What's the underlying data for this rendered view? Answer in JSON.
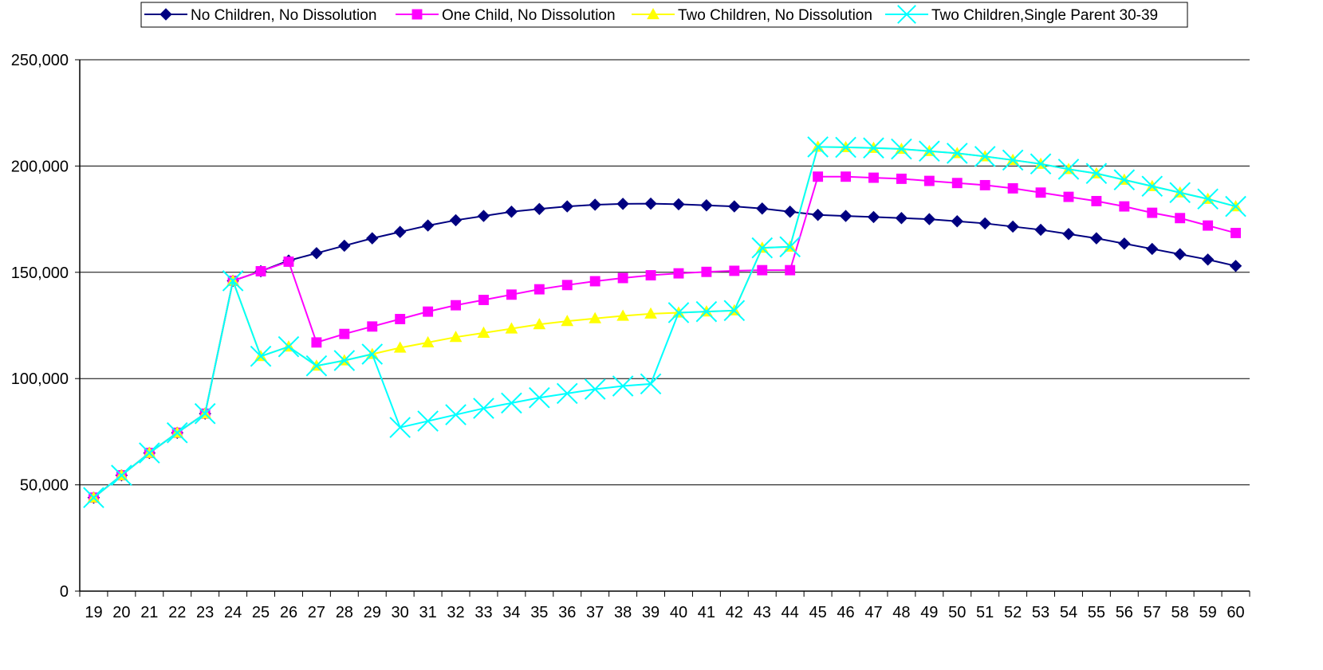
{
  "chart_data": {
    "type": "line",
    "title": "",
    "xlabel": "",
    "ylabel": "",
    "x": [
      19,
      20,
      21,
      22,
      23,
      24,
      25,
      26,
      27,
      28,
      29,
      30,
      31,
      32,
      33,
      34,
      35,
      36,
      37,
      38,
      39,
      40,
      41,
      42,
      43,
      44,
      45,
      46,
      47,
      48,
      49,
      50,
      51,
      52,
      53,
      54,
      55,
      56,
      57,
      58,
      59,
      60
    ],
    "ylim": [
      0,
      250000
    ],
    "yticks": [
      0,
      50000,
      100000,
      150000,
      200000,
      250000
    ],
    "ytick_labels": [
      "0",
      "50,000",
      "100,000",
      "150,000",
      "200,000",
      "250,000"
    ],
    "grid": "horizontal",
    "legend_position": "top",
    "series": [
      {
        "name": "No Children, No Dissolution",
        "color": "#000080",
        "marker": "diamond",
        "values": [
          44000,
          54500,
          65000,
          74500,
          83500,
          146000,
          150500,
          155500,
          159000,
          162500,
          166000,
          169000,
          172000,
          174500,
          176500,
          178500,
          179800,
          181000,
          181800,
          182200,
          182300,
          182000,
          181500,
          181000,
          180000,
          178500,
          177000,
          176500,
          176000,
          175500,
          175000,
          174000,
          173000,
          171500,
          170000,
          168000,
          166000,
          163500,
          161000,
          158500,
          156000,
          153000
        ]
      },
      {
        "name": "One Child, No Dissolution",
        "color": "#FF00FF",
        "marker": "square",
        "values": [
          44000,
          54500,
          65000,
          74500,
          83500,
          146000,
          150500,
          155000,
          117000,
          121000,
          124500,
          128000,
          131500,
          134500,
          137000,
          139500,
          142000,
          144000,
          145800,
          147300,
          148600,
          149500,
          150200,
          150700,
          151000,
          151000,
          195000,
          195000,
          194500,
          194000,
          193000,
          192000,
          191000,
          189500,
          187500,
          185500,
          183500,
          181000,
          178000,
          175500,
          172000,
          168500
        ]
      },
      {
        "name": "Two Children, No Dissolution",
        "color": "#FFFF00",
        "marker": "triangle",
        "values": [
          44000,
          54500,
          65000,
          74500,
          83500,
          146000,
          110500,
          115000,
          106000,
          108500,
          111500,
          114500,
          117000,
          119500,
          121500,
          123500,
          125500,
          127000,
          128300,
          129500,
          130500,
          131000,
          131500,
          132000,
          161500,
          162000,
          209000,
          208800,
          208500,
          208000,
          207000,
          206000,
          204500,
          202800,
          201000,
          198500,
          196500,
          193500,
          190500,
          187500,
          184500,
          181000
        ]
      },
      {
        "name": "Two Children,Single Parent  30-39",
        "color": "#00FFFF",
        "marker": "x",
        "values": [
          44000,
          54500,
          65000,
          74500,
          83500,
          146000,
          110500,
          115000,
          106000,
          108500,
          111500,
          77000,
          80000,
          83000,
          86000,
          88500,
          91000,
          93000,
          95000,
          96500,
          97500,
          131000,
          131500,
          132000,
          161500,
          162000,
          209000,
          208800,
          208500,
          208000,
          207000,
          206000,
          204500,
          202800,
          201000,
          198500,
          196500,
          193500,
          190500,
          187500,
          184500,
          181000
        ]
      }
    ]
  }
}
